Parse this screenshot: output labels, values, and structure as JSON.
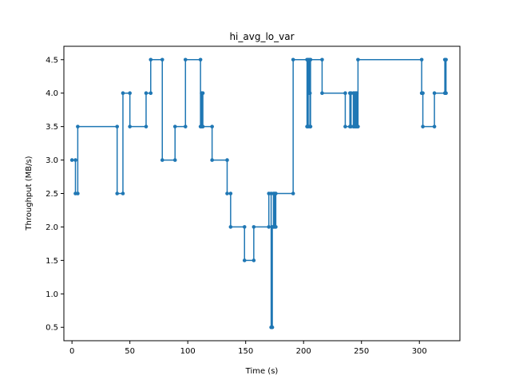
{
  "chart_data": {
    "type": "line",
    "title": "hi_avg_lo_var",
    "xlabel": "Time (s)",
    "ylabel": "Throughput (MB/s)",
    "xlim": [
      -7,
      335
    ],
    "ylim": [
      0.3,
      4.7
    ],
    "xticks": [
      0,
      50,
      100,
      150,
      200,
      250,
      300
    ],
    "yticks": [
      0.5,
      1.0,
      1.5,
      2.0,
      2.5,
      3.0,
      3.5,
      4.0,
      4.5
    ],
    "xtick_labels": [
      "0",
      "50",
      "100",
      "150",
      "200",
      "250",
      "300"
    ],
    "ytick_labels": [
      "0.5",
      "1.0",
      "1.5",
      "2.0",
      "2.5",
      "3.0",
      "3.5",
      "4.0",
      "4.5"
    ],
    "grid": false,
    "step": "post",
    "series": [
      {
        "color": "#1f77b4",
        "marker": "circle",
        "points": [
          [
            0,
            3.0
          ],
          [
            3,
            3.0
          ],
          [
            3,
            2.5
          ],
          [
            5,
            2.5
          ],
          [
            5,
            3.5
          ],
          [
            39,
            3.5
          ],
          [
            39,
            2.5
          ],
          [
            44,
            2.5
          ],
          [
            44,
            4.0
          ],
          [
            50,
            4.0
          ],
          [
            50,
            3.5
          ],
          [
            64,
            3.5
          ],
          [
            64,
            4.0
          ],
          [
            68,
            4.0
          ],
          [
            68,
            4.5
          ],
          [
            78,
            4.5
          ],
          [
            78,
            3.0
          ],
          [
            89,
            3.0
          ],
          [
            89,
            3.5
          ],
          [
            98,
            3.5
          ],
          [
            98,
            4.5
          ],
          [
            111,
            4.5
          ],
          [
            111,
            3.5
          ],
          [
            112,
            3.5
          ],
          [
            112,
            4.0
          ],
          [
            113,
            4.0
          ],
          [
            113,
            3.5
          ],
          [
            121,
            3.5
          ],
          [
            121,
            3.0
          ],
          [
            134,
            3.0
          ],
          [
            134,
            2.5
          ],
          [
            137,
            2.5
          ],
          [
            137,
            2.0
          ],
          [
            149,
            2.0
          ],
          [
            149,
            1.5
          ],
          [
            157,
            1.5
          ],
          [
            157,
            2.0
          ],
          [
            170,
            2.0
          ],
          [
            170,
            2.5
          ],
          [
            172,
            2.5
          ],
          [
            172,
            0.5
          ],
          [
            173,
            0.5
          ],
          [
            173,
            2.0
          ],
          [
            174,
            2.0
          ],
          [
            174,
            2.5
          ],
          [
            175,
            2.5
          ],
          [
            175,
            2.0
          ],
          [
            176,
            2.0
          ],
          [
            176,
            2.5
          ],
          [
            191,
            2.5
          ],
          [
            191,
            4.5
          ],
          [
            203,
            4.5
          ],
          [
            203,
            3.5
          ],
          [
            204,
            3.5
          ],
          [
            204,
            4.5
          ],
          [
            205,
            4.5
          ],
          [
            205,
            4.0
          ],
          [
            205.5,
            4.0
          ],
          [
            205.5,
            3.5
          ],
          [
            206,
            3.5
          ],
          [
            206,
            4.5
          ],
          [
            216,
            4.5
          ],
          [
            216,
            4.0
          ],
          [
            236,
            4.0
          ],
          [
            236,
            3.5
          ],
          [
            240,
            3.5
          ],
          [
            240,
            4.0
          ],
          [
            241,
            4.0
          ],
          [
            241,
            3.5
          ],
          [
            243,
            3.5
          ],
          [
            243,
            4.0
          ],
          [
            244,
            4.0
          ],
          [
            244,
            3.5
          ],
          [
            245,
            3.5
          ],
          [
            245,
            4.0
          ],
          [
            246,
            4.0
          ],
          [
            246,
            3.5
          ],
          [
            247,
            3.5
          ],
          [
            247,
            4.5
          ],
          [
            302,
            4.5
          ],
          [
            302,
            4.0
          ],
          [
            303,
            4.0
          ],
          [
            303,
            3.5
          ],
          [
            313,
            3.5
          ],
          [
            313,
            4.0
          ],
          [
            322,
            4.0
          ],
          [
            322,
            4.5
          ],
          [
            323,
            4.5
          ],
          [
            323,
            4.0
          ]
        ]
      }
    ]
  }
}
